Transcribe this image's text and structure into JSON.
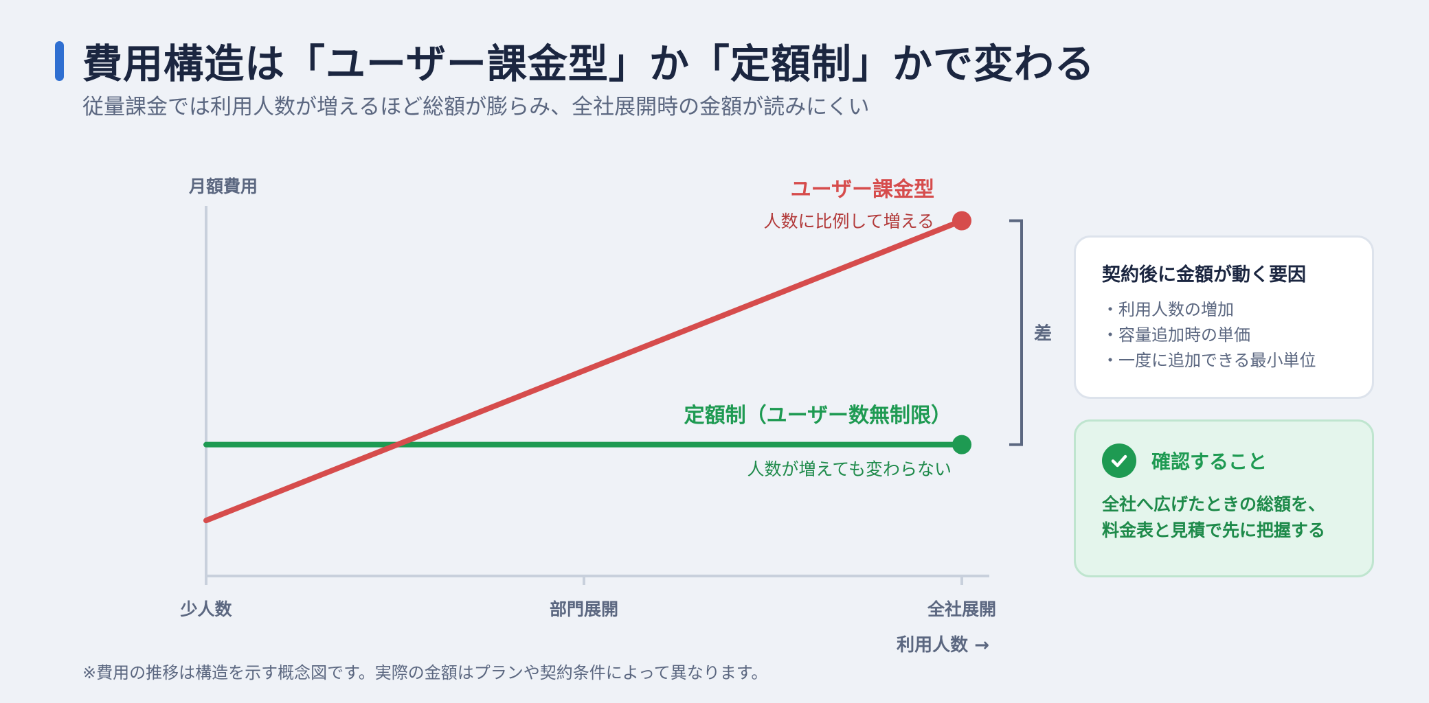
{
  "header": {
    "title": "費用構造は「ユーザー課金型」か「定額制」かで変わる",
    "subtitle": "従量課金では利用人数が増えるほど総額が膨らみ、全社展開時の金額が読みにくい"
  },
  "chart_data": {
    "type": "line",
    "ylabel": "月額費用",
    "xlabel": "利用人数 →",
    "categories": [
      "少人数",
      "部門展開",
      "全社展開"
    ],
    "x_range": [
      0,
      1
    ],
    "ylim": [
      0,
      1
    ],
    "series": [
      {
        "name": "ユーザー課金型",
        "note": "人数に比例して増える",
        "color": "#d64c4c",
        "points": [
          [
            0,
            0.15
          ],
          [
            1,
            0.96
          ]
        ]
      },
      {
        "name": "定額制（ユーザー数無制限）",
        "note": "人数が増えても変わらない",
        "color": "#1e9a52",
        "points": [
          [
            0,
            0.355
          ],
          [
            1,
            0.355
          ]
        ]
      }
    ],
    "annotations": {
      "difference_label": "差"
    },
    "grid": false
  },
  "cards": {
    "factors": {
      "title": "契約後に金額が動く要因",
      "items": [
        "利用人数の増加",
        "容量追加時の単価",
        "一度に追加できる最小単位"
      ]
    },
    "check": {
      "icon": "check-circle-icon",
      "title": "確認すること",
      "lines": [
        "全社へ広げたときの総額を、",
        "料金表と見積で先に把握する"
      ]
    }
  },
  "footnote": "※費用の推移は構造を示す概念図です。実際の金額はプランや契約条件によって異なります。",
  "colors": {
    "accent": "#2f6fd1",
    "per_user": "#d64c4c",
    "flat": "#1e9a52",
    "axis": "#c8d0dc",
    "bracket": "#5b6780"
  }
}
